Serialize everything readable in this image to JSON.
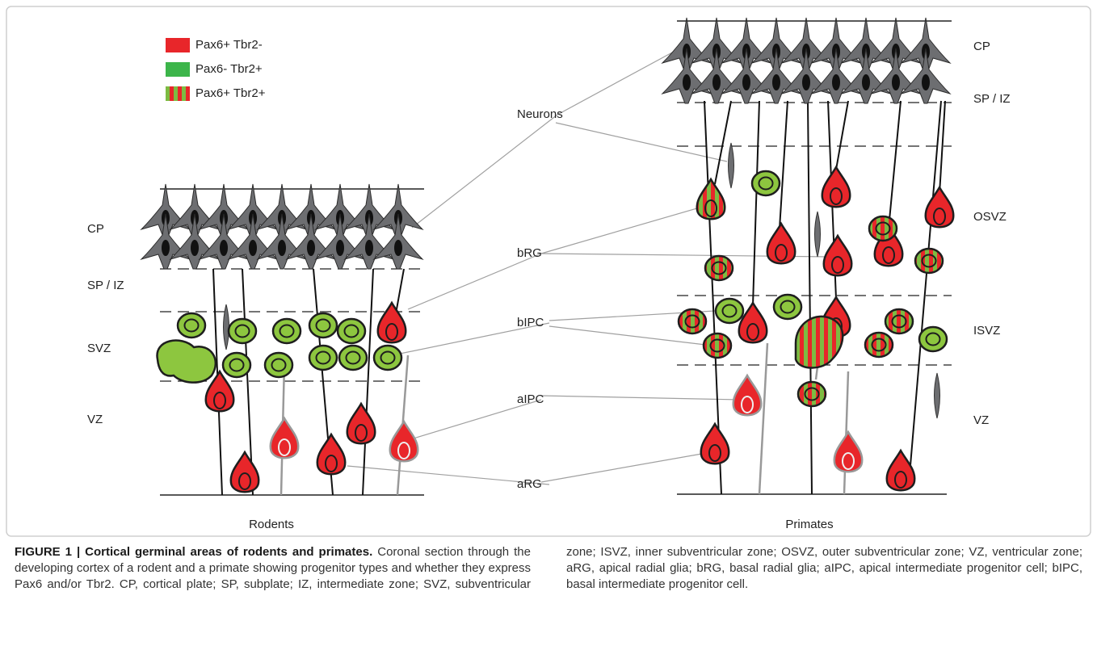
{
  "legend": [
    "Pax6+ Tbr2-",
    "Pax6- Tbr2+",
    "Pax6+ Tbr2+"
  ],
  "rodents": {
    "label": "Rodents",
    "zones": [
      "CP",
      "SP / IZ",
      "SVZ",
      "VZ"
    ]
  },
  "primates": {
    "label": "Primates",
    "zones": [
      "CP",
      "SP / IZ",
      "OSVZ",
      "ISVZ",
      "VZ"
    ]
  },
  "cell_labels": [
    "Neurons",
    "bRG",
    "bIPC",
    "aIPC",
    "aRG"
  ],
  "caption": {
    "title": "FIGURE 1 | Cortical germinal areas of rodents and primates.",
    "text": "Coronal section through the developing cortex of a rodent and a primate showing progenitor types and whether they express Pax6 and/or Tbr2. CP, cortical plate; SP, subplate; IZ, intermediate zone; SVZ, subventricular zone; ISVZ, inner subventricular zone; OSVZ, outer subventricular zone; VZ, ventricular zone; aRG, apical radial glia; bRG, basal radial glia; aIPC, apical intermediate progenitor cell; bIPC, basal intermediate progenitor cell."
  }
}
